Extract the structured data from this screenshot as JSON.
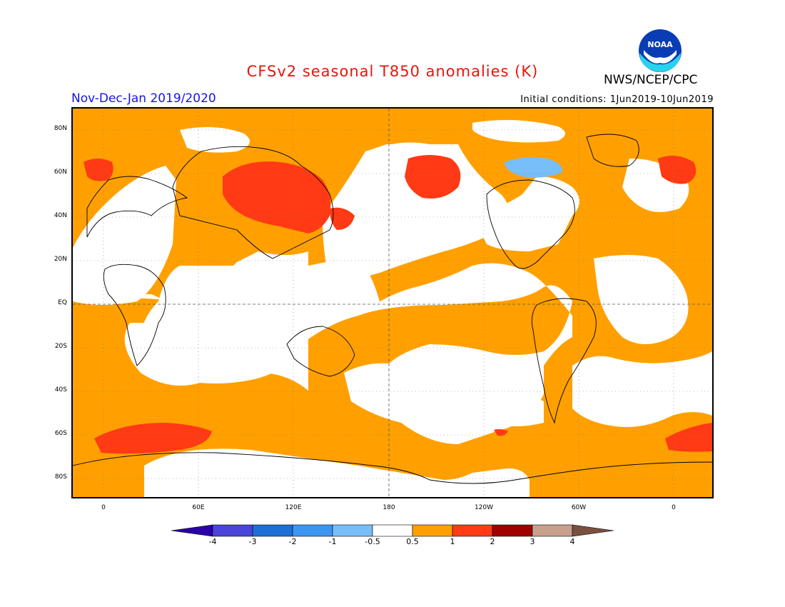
{
  "header": {
    "title": "CFSv2 seasonal T850 anomalies (K)",
    "agency": "NWS/NCEP/CPC",
    "season": "Nov-Dec-Jan 2019/2020",
    "initial_conditions": "Initial conditions: 1Jun2019-10Jun2019",
    "logo_text": "NOAA"
  },
  "map": {
    "lat_labels": [
      "80N",
      "60N",
      "40N",
      "20N",
      "EQ",
      "20S",
      "40S",
      "60S",
      "80S"
    ],
    "lon_labels": [
      "0",
      "60E",
      "120E",
      "180",
      "120W",
      "60W",
      "0"
    ],
    "projection": "equirectangular, centered 180, 20W to 20W",
    "gridlines": "dotted every 30 degrees longitude, 20 degrees latitude; dashed at equator and 180"
  },
  "legend": {
    "labels": [
      "-4",
      "-3",
      "-2",
      "-1",
      "-0.5",
      "0.5",
      "1",
      "2",
      "3",
      "4"
    ],
    "colors": [
      "#2a00a8",
      "#4b44d8",
      "#1e6ed8",
      "#3c96f0",
      "#78bef8",
      "#ffffff",
      "#ffa000",
      "#ff3a14",
      "#a00000",
      "#c8a08c",
      "#7a5040"
    ]
  },
  "colors": {
    "title": "#e8140c",
    "season": "#1414e6",
    "anom_0_5_1": "#ffa000",
    "anom_1_2": "#ff3a14",
    "anom_2_3": "#a00000",
    "anom_neg_0_5_1": "#78bef8",
    "neutral": "#ffffff"
  }
}
